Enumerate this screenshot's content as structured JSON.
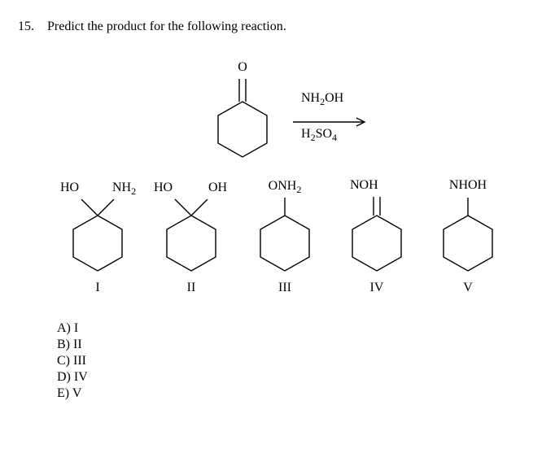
{
  "question": {
    "number": "15.",
    "text": "Predict the product for the following reaction."
  },
  "reaction": {
    "top_label_html": "NH<span class=\"sub\">2</span>OH",
    "bottom_label_html": "H<span class=\"sub\">2</span>SO<span class=\"sub\">4</span>",
    "ketone_O": "O"
  },
  "options": {
    "o1": {
      "top_left": "HO",
      "top_right_html": "NH<span class=\"sub\">2</span>",
      "roman": "I"
    },
    "o2": {
      "top_left": "HO",
      "top_right": "OH",
      "roman": "II"
    },
    "o3": {
      "top_html": "ONH<span class=\"sub\">2</span>",
      "roman": "III"
    },
    "o4": {
      "top": "NOH",
      "roman": "IV"
    },
    "o5": {
      "top": "NHOH",
      "roman": "V"
    }
  },
  "answers": {
    "a": "A)  I",
    "b": "B)  II",
    "c": "C)  III",
    "d": "D)  IV",
    "e": "E)  V"
  },
  "style": {
    "stroke": "#000000",
    "stroke_width": 1.4,
    "font": "Times New Roman"
  }
}
